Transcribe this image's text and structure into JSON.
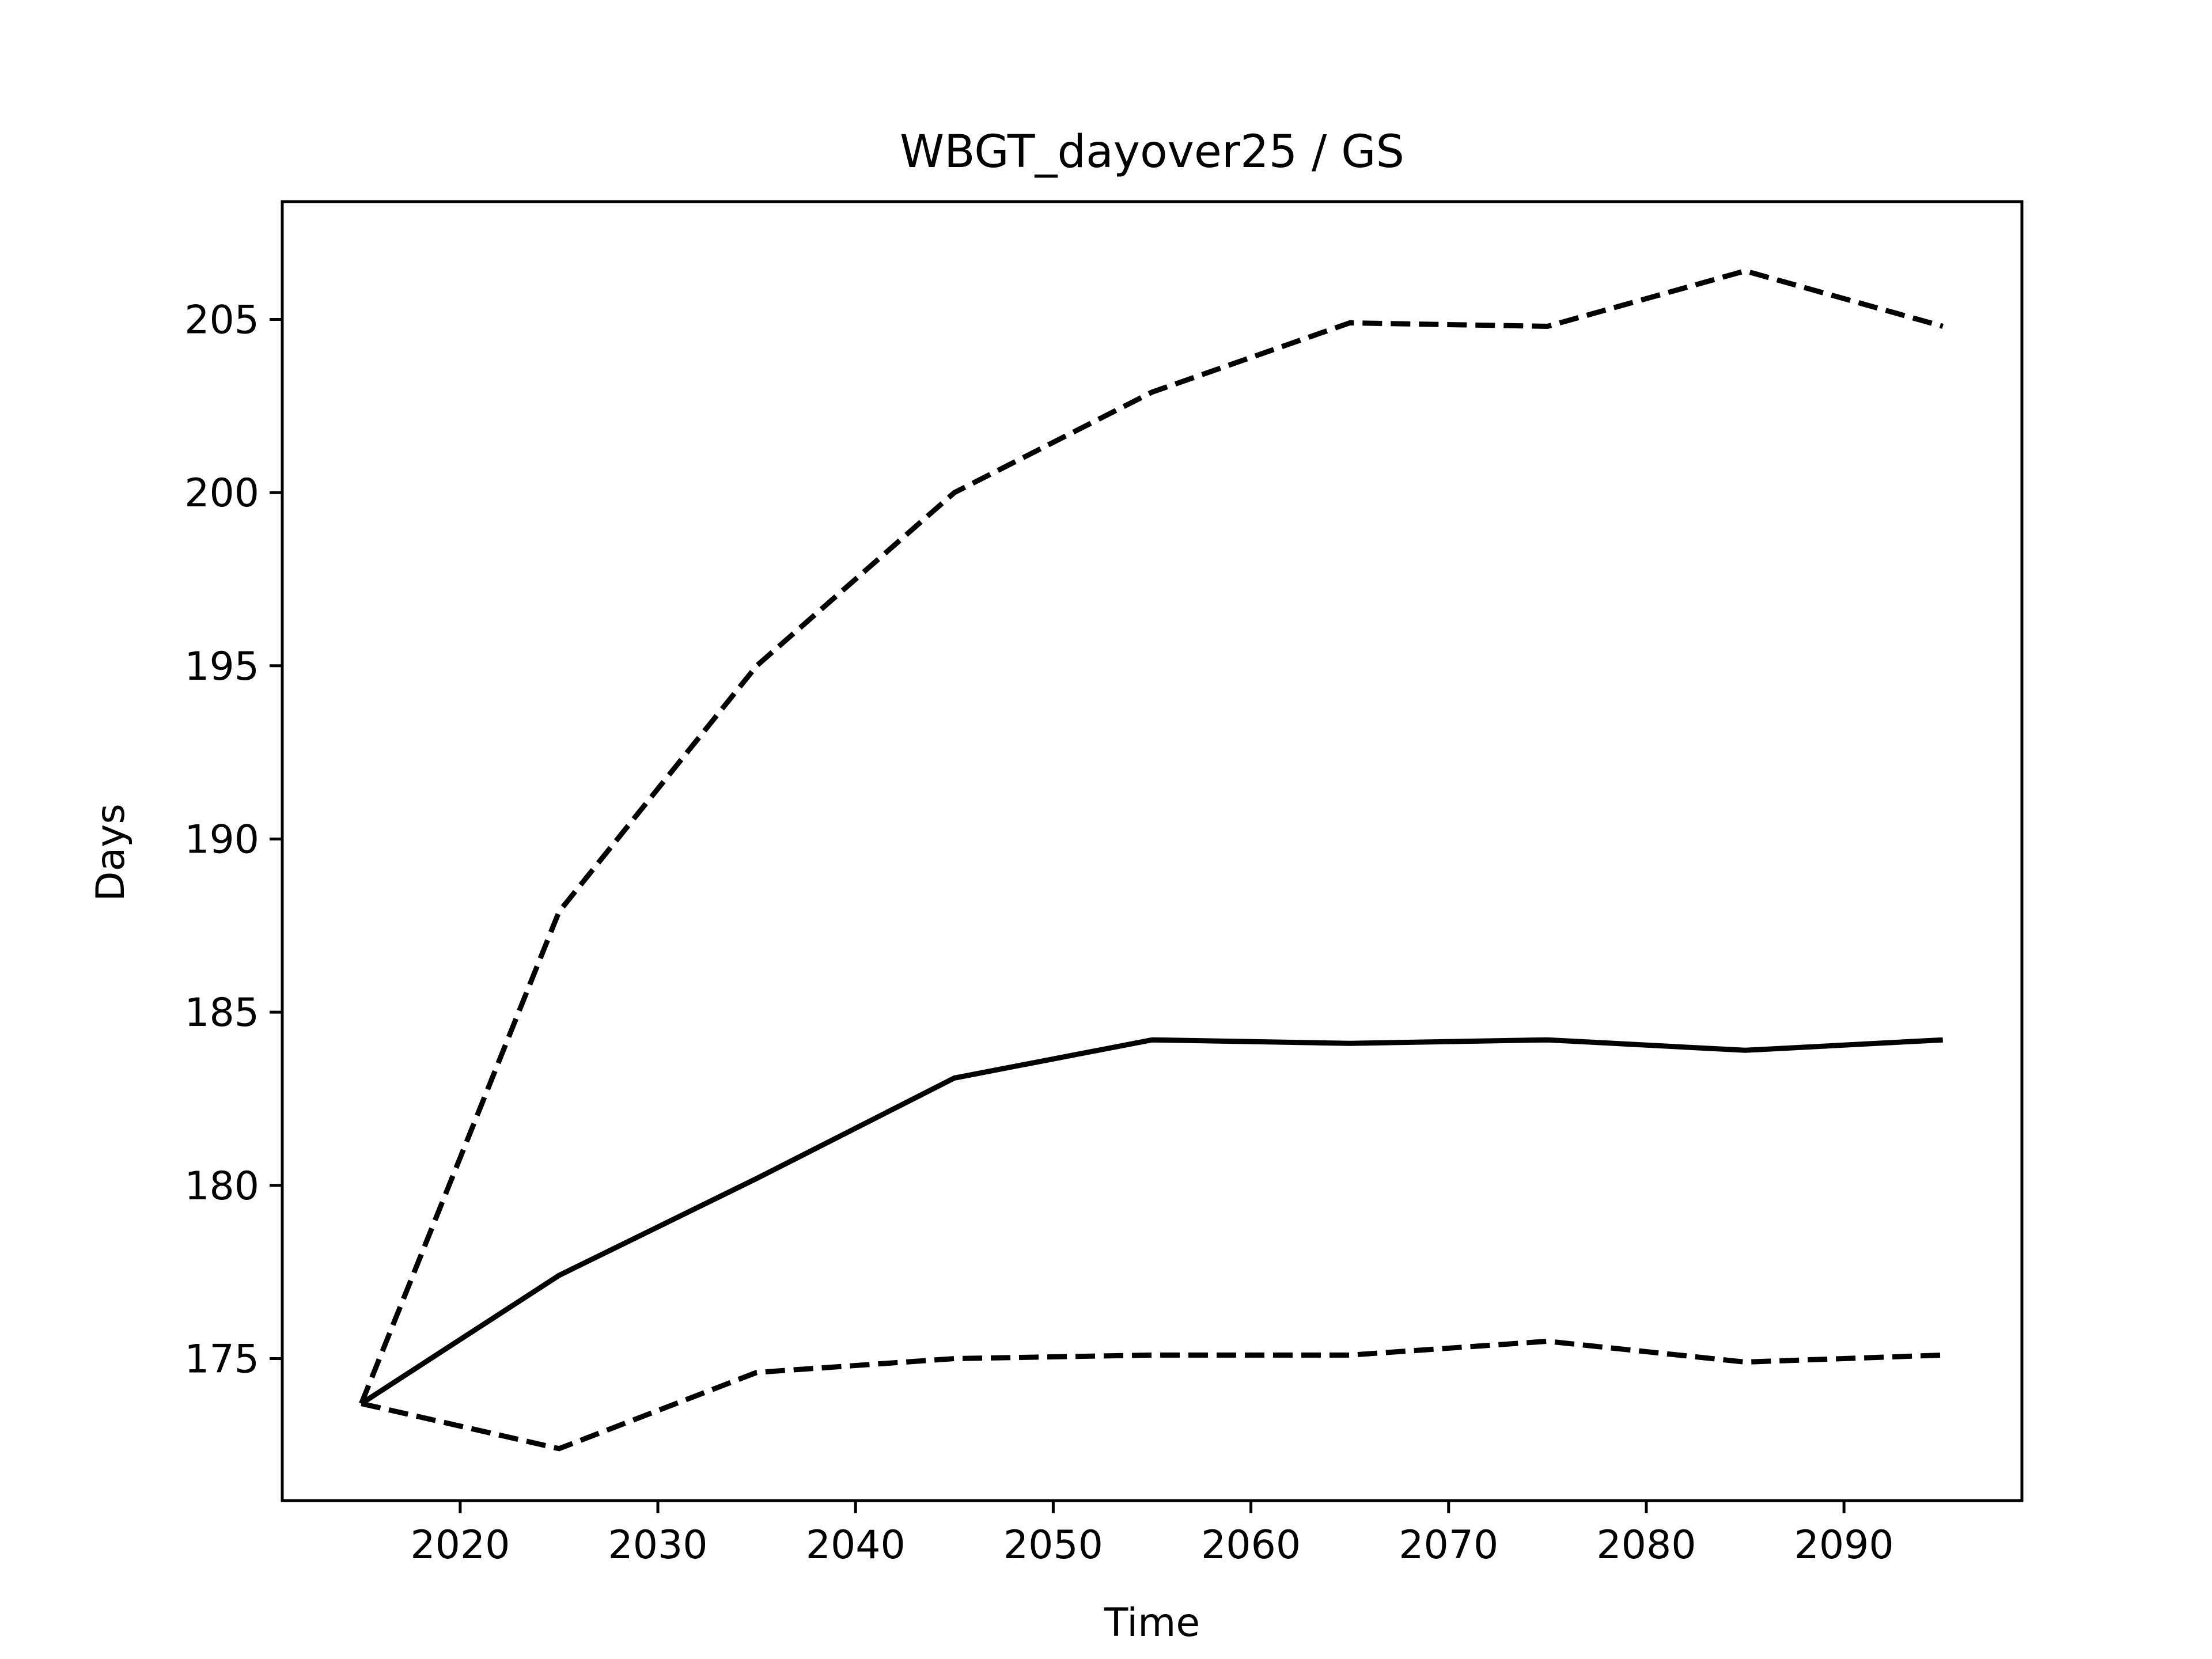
{
  "chart_data": {
    "type": "line",
    "title": "WBGT_dayover25 / GS",
    "xlabel": "Time",
    "ylabel": "Days",
    "x": [
      2015,
      2025,
      2035,
      2045,
      2055,
      2065,
      2075,
      2085,
      2095
    ],
    "xlim": [
      2011,
      2099
    ],
    "ylim": [
      170.9,
      208.4
    ],
    "xticks": [
      2020,
      2030,
      2040,
      2050,
      2060,
      2070,
      2080,
      2090
    ],
    "yticks": [
      175,
      180,
      185,
      190,
      195,
      200,
      205
    ],
    "grid": false,
    "series": [
      {
        "style": "dashed",
        "color": "#000000",
        "values": [
          173.7,
          187.9,
          195.0,
          200.0,
          202.9,
          204.9,
          204.8,
          206.4,
          204.8
        ]
      },
      {
        "style": "solid",
        "color": "#000000",
        "values": [
          173.7,
          177.4,
          180.2,
          183.1,
          184.2,
          184.1,
          184.2,
          183.9,
          184.2
        ]
      },
      {
        "style": "dashed",
        "color": "#000000",
        "values": [
          173.7,
          172.4,
          174.6,
          175.0,
          175.1,
          175.1,
          175.5,
          174.9,
          175.1
        ]
      }
    ]
  }
}
